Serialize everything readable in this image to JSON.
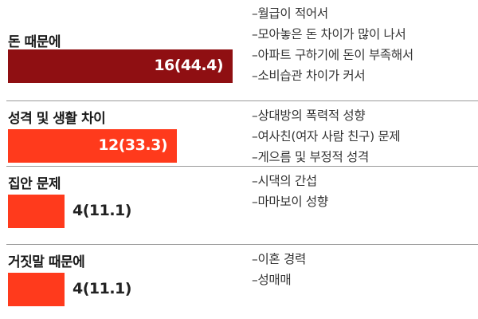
{
  "chart_data": {
    "type": "bar",
    "orientation": "horizontal",
    "categories": [
      "돈 때문에",
      "성격 및 생활 차이",
      "집안 문제",
      "거짓말 때문에"
    ],
    "values": [
      16,
      12,
      4,
      4
    ],
    "value_labels": [
      "16(44.4)",
      "12(33.3)",
      "4(11.1)",
      "4(11.1)"
    ],
    "percentages": [
      44.4,
      33.3,
      11.1,
      11.1
    ],
    "colors": [
      "#8f0f12",
      "#ff3a1c",
      "#ff3a1c",
      "#ff3a1c"
    ],
    "reasons": [
      [
        "–월급이 적어서",
        "–모아놓은 돈 차이가 많이 나서",
        "–아파트 구하기에 돈이 부족해서",
        "–소비습관 차이가 커서"
      ],
      [
        "–상대방의 폭력적 성향",
        "–여사친(여자 사람 친구) 문제",
        "–게으름 및 부정적 성격"
      ],
      [
        "–시댁의 간섭",
        "–마마보이 성향"
      ],
      [
        "–이혼 경력",
        "–성매매"
      ]
    ],
    "title": "",
    "xlabel": "",
    "ylabel": "",
    "xlim": [
      0,
      16
    ],
    "grid": false,
    "legend": "none"
  }
}
